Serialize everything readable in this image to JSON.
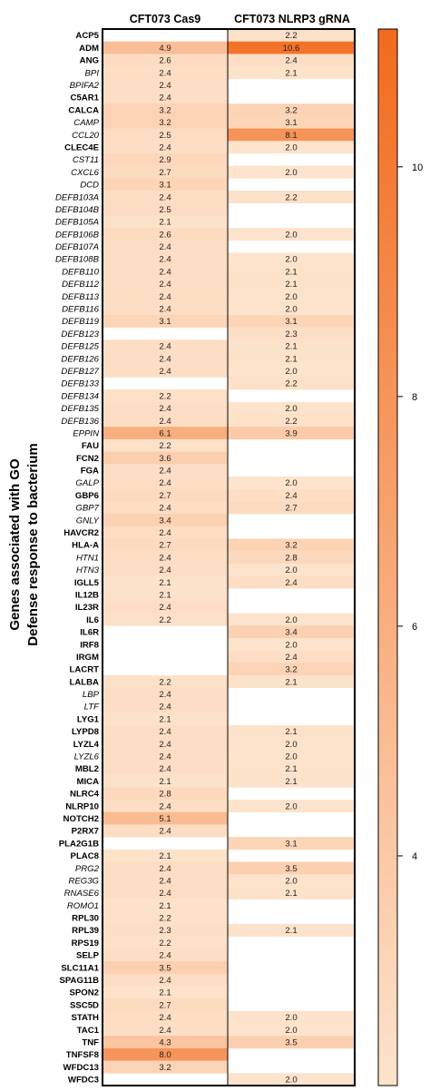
{
  "chart_data": {
    "type": "heatmap",
    "title": "",
    "ylabel_lines": [
      "Genes associated with GO",
      "Defense response to bacterium"
    ],
    "columns": [
      "CFT073 Cas9",
      "CFT073 NLRP3 gRNA"
    ],
    "rows": [
      {
        "gene": "ACP5",
        "italic": false,
        "values": [
          null,
          2.2
        ]
      },
      {
        "gene": "ADM",
        "italic": false,
        "values": [
          4.9,
          10.6
        ]
      },
      {
        "gene": "ANG",
        "italic": false,
        "values": [
          2.6,
          2.4
        ]
      },
      {
        "gene": "BPI",
        "italic": true,
        "values": [
          2.4,
          2.1
        ]
      },
      {
        "gene": "BPIFA2",
        "italic": true,
        "values": [
          2.4,
          null
        ]
      },
      {
        "gene": "C5AR1",
        "italic": false,
        "values": [
          2.4,
          null
        ]
      },
      {
        "gene": "CALCA",
        "italic": false,
        "values": [
          3.2,
          3.2
        ]
      },
      {
        "gene": "CAMP",
        "italic": true,
        "values": [
          3.2,
          3.1
        ]
      },
      {
        "gene": "CCL20",
        "italic": true,
        "values": [
          2.5,
          8.1
        ]
      },
      {
        "gene": "CLEC4E",
        "italic": false,
        "values": [
          2.4,
          2.0
        ]
      },
      {
        "gene": "CST11",
        "italic": true,
        "values": [
          2.9,
          null
        ]
      },
      {
        "gene": "CXCL6",
        "italic": true,
        "values": [
          2.7,
          2.0
        ]
      },
      {
        "gene": "DCD",
        "italic": true,
        "values": [
          3.1,
          null
        ]
      },
      {
        "gene": "DEFB103A",
        "italic": true,
        "values": [
          2.4,
          2.2
        ]
      },
      {
        "gene": "DEFB104B",
        "italic": true,
        "values": [
          2.5,
          null
        ]
      },
      {
        "gene": "DEFB105A",
        "italic": true,
        "values": [
          2.1,
          null
        ]
      },
      {
        "gene": "DEFB106B",
        "italic": true,
        "values": [
          2.6,
          2.0
        ]
      },
      {
        "gene": "DEFB107A",
        "italic": true,
        "values": [
          2.4,
          null
        ]
      },
      {
        "gene": "DEFB108B",
        "italic": true,
        "values": [
          2.4,
          2.0
        ]
      },
      {
        "gene": "DEFB110",
        "italic": true,
        "values": [
          2.4,
          2.1
        ]
      },
      {
        "gene": "DEFB112",
        "italic": true,
        "values": [
          2.4,
          2.1
        ]
      },
      {
        "gene": "DEFB113",
        "italic": true,
        "values": [
          2.4,
          2.0
        ]
      },
      {
        "gene": "DEFB116",
        "italic": true,
        "values": [
          2.4,
          2.0
        ]
      },
      {
        "gene": "DEFB119",
        "italic": true,
        "values": [
          3.1,
          3.1
        ]
      },
      {
        "gene": "DEFB123",
        "italic": true,
        "values": [
          null,
          2.3
        ]
      },
      {
        "gene": "DEFB125",
        "italic": true,
        "values": [
          2.4,
          2.1
        ]
      },
      {
        "gene": "DEFB126",
        "italic": true,
        "values": [
          2.4,
          2.1
        ]
      },
      {
        "gene": "DEFB127",
        "italic": true,
        "values": [
          2.4,
          2.0
        ]
      },
      {
        "gene": "DEFB133",
        "italic": true,
        "values": [
          null,
          2.2
        ]
      },
      {
        "gene": "DEFB134",
        "italic": true,
        "values": [
          2.2,
          null
        ]
      },
      {
        "gene": "DEFB135",
        "italic": true,
        "values": [
          2.4,
          2.0
        ]
      },
      {
        "gene": "DEFB136",
        "italic": true,
        "values": [
          2.4,
          2.2
        ]
      },
      {
        "gene": "EPPIN",
        "italic": true,
        "values": [
          6.1,
          3.9
        ]
      },
      {
        "gene": "FAU",
        "italic": false,
        "values": [
          2.2,
          null
        ]
      },
      {
        "gene": "FCN2",
        "italic": false,
        "values": [
          3.6,
          null
        ]
      },
      {
        "gene": "FGA",
        "italic": false,
        "values": [
          2.4,
          null
        ]
      },
      {
        "gene": "GALP",
        "italic": true,
        "values": [
          2.4,
          2.0
        ]
      },
      {
        "gene": "GBP6",
        "italic": false,
        "values": [
          2.7,
          2.4
        ]
      },
      {
        "gene": "GBP7",
        "italic": true,
        "values": [
          2.4,
          2.7
        ]
      },
      {
        "gene": "GNLY",
        "italic": true,
        "values": [
          3.4,
          null
        ]
      },
      {
        "gene": "HAVCR2",
        "italic": false,
        "values": [
          2.4,
          null
        ]
      },
      {
        "gene": "HLA-A",
        "italic": false,
        "values": [
          2.7,
          3.2
        ]
      },
      {
        "gene": "HTN1",
        "italic": true,
        "values": [
          2.4,
          2.8
        ]
      },
      {
        "gene": "HTN3",
        "italic": true,
        "values": [
          2.4,
          2.0
        ]
      },
      {
        "gene": "IGLL5",
        "italic": false,
        "values": [
          2.1,
          2.4
        ]
      },
      {
        "gene": "IL12B",
        "italic": false,
        "values": [
          2.1,
          null
        ]
      },
      {
        "gene": "IL23R",
        "italic": false,
        "values": [
          2.4,
          null
        ]
      },
      {
        "gene": "IL6",
        "italic": false,
        "values": [
          2.2,
          2.0
        ]
      },
      {
        "gene": "IL6R",
        "italic": false,
        "values": [
          null,
          3.4
        ]
      },
      {
        "gene": "IRF8",
        "italic": false,
        "values": [
          null,
          2.0
        ]
      },
      {
        "gene": "IRGM",
        "italic": false,
        "values": [
          null,
          2.4
        ]
      },
      {
        "gene": "LACRT",
        "italic": false,
        "values": [
          null,
          3.2
        ]
      },
      {
        "gene": "LALBA",
        "italic": false,
        "values": [
          2.2,
          2.1
        ]
      },
      {
        "gene": "LBP",
        "italic": true,
        "values": [
          2.4,
          null
        ]
      },
      {
        "gene": "LTF",
        "italic": true,
        "values": [
          2.4,
          null
        ]
      },
      {
        "gene": "LYG1",
        "italic": false,
        "values": [
          2.1,
          null
        ]
      },
      {
        "gene": "LYPD8",
        "italic": false,
        "values": [
          2.4,
          2.1
        ]
      },
      {
        "gene": "LYZL4",
        "italic": false,
        "values": [
          2.4,
          2.0
        ]
      },
      {
        "gene": "LYZL6",
        "italic": true,
        "values": [
          2.4,
          2.0
        ]
      },
      {
        "gene": "MBL2",
        "italic": false,
        "values": [
          2.4,
          2.1
        ]
      },
      {
        "gene": "MICA",
        "italic": false,
        "values": [
          2.1,
          2.1
        ]
      },
      {
        "gene": "NLRC4",
        "italic": false,
        "values": [
          2.8,
          null
        ]
      },
      {
        "gene": "NLRP10",
        "italic": false,
        "values": [
          2.4,
          2.0
        ]
      },
      {
        "gene": "NOTCH2",
        "italic": false,
        "values": [
          5.1,
          null
        ]
      },
      {
        "gene": "P2RX7",
        "italic": false,
        "values": [
          2.4,
          null
        ]
      },
      {
        "gene": "PLA2G1B",
        "italic": false,
        "values": [
          null,
          3.1
        ]
      },
      {
        "gene": "PLAC8",
        "italic": false,
        "values": [
          2.1,
          null
        ]
      },
      {
        "gene": "PRG2",
        "italic": true,
        "values": [
          2.4,
          3.5
        ]
      },
      {
        "gene": "REG3G",
        "italic": true,
        "values": [
          2.4,
          2.0
        ]
      },
      {
        "gene": "RNASE6",
        "italic": true,
        "values": [
          2.4,
          2.1
        ]
      },
      {
        "gene": "ROMO1",
        "italic": true,
        "values": [
          2.1,
          null
        ]
      },
      {
        "gene": "RPL30",
        "italic": false,
        "values": [
          2.2,
          null
        ]
      },
      {
        "gene": "RPL39",
        "italic": false,
        "values": [
          2.3,
          2.1
        ]
      },
      {
        "gene": "RPS19",
        "italic": false,
        "values": [
          2.2,
          null
        ]
      },
      {
        "gene": "SELP",
        "italic": false,
        "values": [
          2.4,
          null
        ]
      },
      {
        "gene": "SLC11A1",
        "italic": false,
        "values": [
          3.5,
          null
        ]
      },
      {
        "gene": "SPAG11B",
        "italic": false,
        "values": [
          2.4,
          null
        ]
      },
      {
        "gene": "SPON2",
        "italic": false,
        "values": [
          2.1,
          null
        ]
      },
      {
        "gene": "SSC5D",
        "italic": false,
        "values": [
          2.7,
          null
        ]
      },
      {
        "gene": "STATH",
        "italic": false,
        "values": [
          2.4,
          2.0
        ]
      },
      {
        "gene": "TAC1",
        "italic": false,
        "values": [
          2.4,
          2.0
        ]
      },
      {
        "gene": "TNF",
        "italic": false,
        "values": [
          4.3,
          3.5
        ]
      },
      {
        "gene": "TNFSF8",
        "italic": false,
        "values": [
          8.0,
          null
        ]
      },
      {
        "gene": "WFDC13",
        "italic": false,
        "values": [
          3.2,
          null
        ]
      },
      {
        "gene": "WFDC3",
        "italic": false,
        "values": [
          null,
          2.0
        ]
      }
    ],
    "colorbar": {
      "min": 2.0,
      "max": 11.2,
      "ticks": [
        4,
        6,
        8,
        10
      ],
      "color_low": "#fde3cc",
      "color_high": "#f26b1d"
    },
    "legend": "colorbar-right"
  }
}
